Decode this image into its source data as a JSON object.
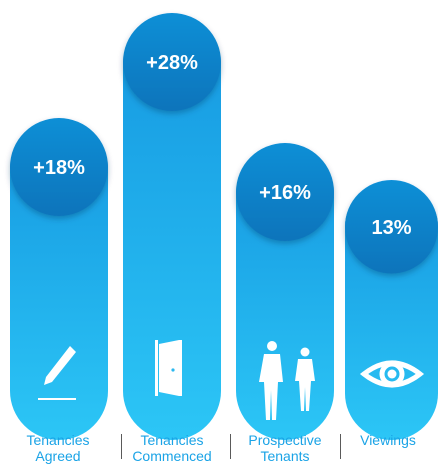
{
  "chart_data": {
    "type": "bar",
    "categories": [
      "Tenancies Agreed",
      "Tenancies Commenced",
      "Prospective Tenants",
      "Viewings"
    ],
    "values": [
      18,
      28,
      16,
      13
    ],
    "value_labels": [
      "+18%",
      "+28%",
      "+16%",
      "13%"
    ],
    "icons": [
      "pencil-icon",
      "door-icon",
      "people-icon",
      "eye-icon"
    ],
    "ylim": [
      0,
      30
    ],
    "grid": false,
    "legend": "none"
  },
  "labels": {
    "line1": [
      "Tenancies",
      "Tenancies",
      "Prospective",
      "Viewings"
    ],
    "line2": [
      "Agreed",
      "Commenced",
      "Tenants",
      ""
    ]
  },
  "colors": {
    "bar_top": "#1aa3e6",
    "bar_bottom": "#2bc4f5",
    "circle": "#0d82c8",
    "label": "#1aa3e6"
  }
}
